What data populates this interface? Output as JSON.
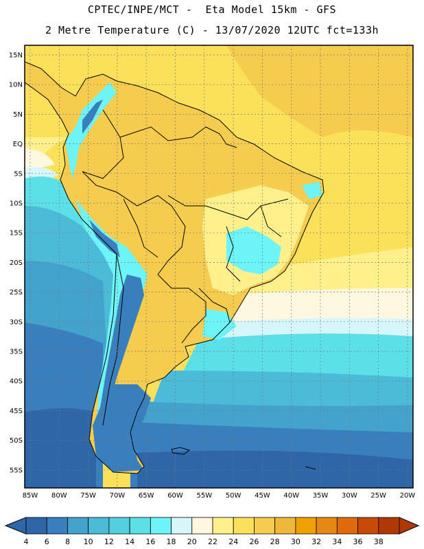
{
  "header": {
    "title_line1": "CPTEC/INPE/MCT -  Eta Model 15km - GFS",
    "title_line2": "2 Metre Temperature (C) - 13/07/2020 12UTC fct=133h"
  },
  "axes": {
    "lat_labels": [
      "15N",
      "10N",
      "5N",
      "EQ",
      "5S",
      "10S",
      "15S",
      "20S",
      "25S",
      "30S",
      "35S",
      "40S",
      "45S",
      "50S",
      "55S"
    ],
    "lon_labels": [
      "85W",
      "80W",
      "75W",
      "70W",
      "65W",
      "60W",
      "55W",
      "50W",
      "45W",
      "40W",
      "35W",
      "30W",
      "25W",
      "20W"
    ]
  },
  "colorbar": {
    "labels": [
      "4",
      "6",
      "8",
      "10",
      "12",
      "14",
      "16",
      "18",
      "20",
      "22",
      "24",
      "26",
      "28",
      "30",
      "32",
      "34",
      "36",
      "38"
    ],
    "colors": [
      "#2f66a8",
      "#3a7fbd",
      "#44a3cc",
      "#4cbbd8",
      "#54cfe0",
      "#5ce0e8",
      "#6cf4f6",
      "#d6f6fb",
      "#fff8e0",
      "#fff08c",
      "#fbe05a",
      "#f5cc4e",
      "#f0b838",
      "#f0a000",
      "#e88814",
      "#e06a0a",
      "#c84a06",
      "#b03804"
    ],
    "left_arrow_color": "#2f66a8",
    "right_arrow_color": "#b03804"
  },
  "palette": {
    "ocean_warm": "#fbe05a",
    "ocean_hot": "#f5cc4e",
    "ocean_mild": "#fff08c",
    "ocean_cool": "#fff8e0",
    "ocean_cold1": "#d6f6fb",
    "ocean_cold2": "#5ce0e8",
    "ocean_cold3": "#4cbbd8",
    "ocean_cold4": "#44a3cc",
    "ocean_cold5": "#3a7fbd",
    "ocean_cold6": "#2f66a8",
    "land_interior": "#f5cc4e",
    "land_east": "#fff08c",
    "highland": "#6cf4f6",
    "andes": "#3a7fbd"
  }
}
